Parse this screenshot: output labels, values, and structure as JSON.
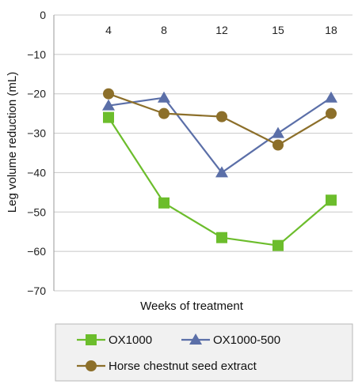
{
  "chart_data": {
    "type": "line",
    "categories": [
      "4",
      "8",
      "12",
      "15",
      "18"
    ],
    "x_axis_position": "top",
    "xlabel": "Weeks of treatment",
    "ylabel": "Leg volume reduction (mL)",
    "ylim": [
      -70,
      0
    ],
    "yticks": [
      "0",
      "−10",
      "−20",
      "−30",
      "−40",
      "−50",
      "−60",
      "−70"
    ],
    "grid": "horizontal",
    "legend_position": "bottom",
    "series": [
      {
        "name": "OX1000",
        "values": [
          -26,
          -47.7,
          -56.5,
          -58.5,
          -47
        ],
        "color": "#6cbd2c",
        "marker": "square"
      },
      {
        "name": "OX1000-500",
        "values": [
          -23,
          -21,
          -40,
          -30,
          -21
        ],
        "color": "#5b6fa8",
        "marker": "triangle"
      },
      {
        "name": "Horse chestnut seed extract",
        "values": [
          -20,
          -25,
          -25.8,
          -33,
          -25
        ],
        "color": "#8c6f2a",
        "marker": "circle"
      }
    ]
  }
}
